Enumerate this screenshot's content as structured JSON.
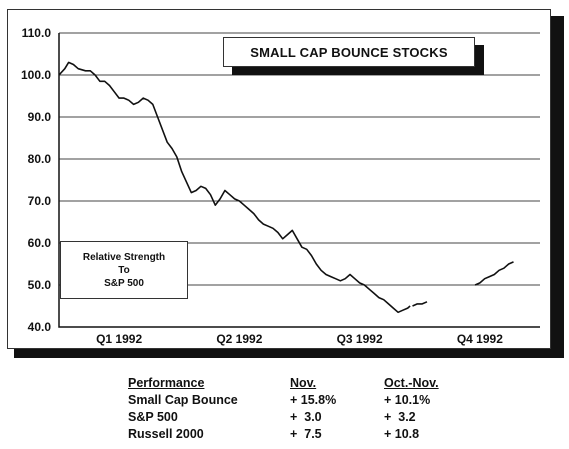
{
  "chart_data": {
    "type": "line",
    "title": "SMALL CAP BOUNCE STOCKS",
    "legend_text": [
      "Relative Strength",
      "To",
      "S&P 500"
    ],
    "ylim": [
      40,
      110
    ],
    "y_ticks": [
      "110.0",
      "100.0",
      "90.0",
      "80.0",
      "70.0",
      "60.0",
      "50.0",
      "40.0"
    ],
    "categories": [
      "Q1  1992",
      "Q2  1992",
      "Q3  1992",
      "Q4  1992"
    ],
    "grid": true,
    "x_range": [
      0,
      100
    ],
    "series": [
      {
        "segments": [
          [
            [
              0,
              100
            ],
            [
              1.2,
              101.5
            ],
            [
              2,
              103
            ],
            [
              3,
              102.5
            ],
            [
              4,
              101.5
            ],
            [
              5.5,
              101
            ],
            [
              6.5,
              101
            ],
            [
              7.5,
              100
            ],
            [
              8.5,
              98.5
            ],
            [
              9.5,
              98.5
            ],
            [
              10.5,
              97.5
            ],
            [
              11.5,
              96
            ],
            [
              12.5,
              94.5
            ],
            [
              13.5,
              94.5
            ],
            [
              14.5,
              94
            ],
            [
              15.5,
              93
            ],
            [
              16.5,
              93.5
            ],
            [
              17.5,
              94.5
            ],
            [
              18.5,
              94
            ],
            [
              19.5,
              93
            ],
            [
              20.5,
              90
            ],
            [
              21.5,
              87
            ],
            [
              22.5,
              84
            ],
            [
              23.5,
              82.5
            ],
            [
              24.5,
              80.5
            ],
            [
              25.5,
              77
            ],
            [
              26.5,
              74.5
            ],
            [
              27.5,
              72
            ],
            [
              28.5,
              72.5
            ],
            [
              29.5,
              73.5
            ],
            [
              30.5,
              73
            ],
            [
              31.5,
              71.5
            ],
            [
              32.5,
              69
            ],
            [
              33.5,
              70.5
            ],
            [
              34.5,
              72.5
            ],
            [
              35.5,
              71.5
            ],
            [
              36.5,
              70.5
            ],
            [
              37.5,
              70
            ],
            [
              38.5,
              69
            ],
            [
              39.5,
              68
            ],
            [
              40.5,
              67
            ],
            [
              41.5,
              65.5
            ],
            [
              42.5,
              64.5
            ],
            [
              43.5,
              64
            ],
            [
              44.5,
              63.5
            ],
            [
              45.5,
              62.5
            ],
            [
              46.5,
              61
            ],
            [
              47.5,
              62
            ],
            [
              48.5,
              63
            ],
            [
              49.5,
              61
            ],
            [
              50.5,
              59
            ],
            [
              51.5,
              58.5
            ],
            [
              52.5,
              57
            ],
            [
              53.5,
              55
            ],
            [
              54.5,
              53.5
            ],
            [
              55.5,
              52.5
            ],
            [
              56.5,
              52
            ],
            [
              57.5,
              51.5
            ],
            [
              58.5,
              51
            ],
            [
              59.5,
              51.5
            ],
            [
              60.5,
              52.5
            ],
            [
              61.5,
              51.5
            ],
            [
              62.5,
              50.5
            ],
            [
              63.5,
              50
            ],
            [
              64.5,
              49
            ],
            [
              65.5,
              48
            ],
            [
              66.5,
              47
            ],
            [
              67.5,
              46.5
            ],
            [
              68.5,
              45.5
            ],
            [
              69.5,
              44.5
            ],
            [
              70.5,
              43.5
            ],
            [
              71.5,
              44
            ],
            [
              72.5,
              44.5
            ],
            [
              73,
              45
            ]
          ],
          [
            [
              73.5,
              45
            ],
            [
              74.5,
              45.5
            ],
            [
              75.5,
              45.5
            ],
            [
              76.5,
              46
            ]
          ],
          [
            [
              86.5,
              50
            ],
            [
              87.5,
              50.5
            ],
            [
              88.5,
              51.5
            ],
            [
              89.5,
              52
            ],
            [
              90.5,
              52.5
            ],
            [
              91.5,
              53.5
            ],
            [
              92.5,
              54
            ],
            [
              93.5,
              55
            ],
            [
              94.5,
              55.5
            ]
          ]
        ]
      }
    ]
  },
  "performance": {
    "headers": [
      "Performance",
      "Nov.",
      "Oct.-Nov."
    ],
    "rows": [
      [
        "Small Cap Bounce",
        "+ 15.8%",
        "+ 10.1%"
      ],
      [
        "S&P 500",
        "+  3.0",
        "+  3.2"
      ],
      [
        "Russell 2000",
        "+  7.5",
        "+ 10.8"
      ]
    ]
  }
}
